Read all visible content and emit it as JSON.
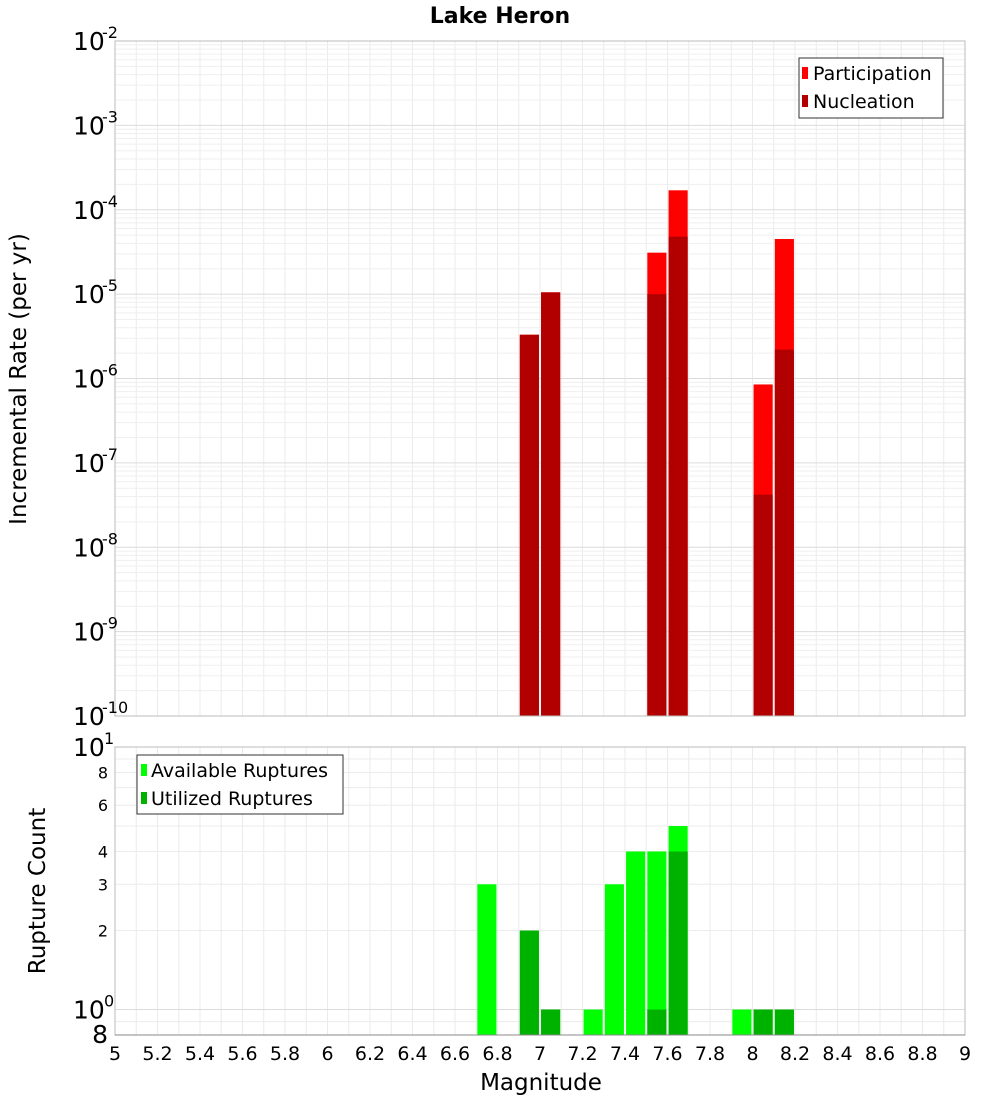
{
  "chart_data": [
    {
      "type": "bar",
      "title": "Lake Heron",
      "xlabel": "",
      "ylabel": "Incremental Rate (per yr)",
      "yscale": "log",
      "xlim": [
        5,
        9
      ],
      "ylim": [
        1e-10,
        0.01
      ],
      "grid": true,
      "legend_position": "top-right",
      "bar_width": 0.09,
      "y_major_ticks": [
        {
          "value": 1e-10,
          "base": "10",
          "exp": "-10"
        },
        {
          "value": 1e-09,
          "base": "10",
          "exp": "-9"
        },
        {
          "value": 1e-08,
          "base": "10",
          "exp": "-8"
        },
        {
          "value": 1e-07,
          "base": "10",
          "exp": "-7"
        },
        {
          "value": 1e-06,
          "base": "10",
          "exp": "-6"
        },
        {
          "value": 1e-05,
          "base": "10",
          "exp": "-5"
        },
        {
          "value": 0.0001,
          "base": "10",
          "exp": "-4"
        },
        {
          "value": 0.001,
          "base": "10",
          "exp": "-3"
        },
        {
          "value": 0.01,
          "base": "10",
          "exp": "-2"
        }
      ],
      "series": [
        {
          "name": "Participation",
          "color": "#ff0000",
          "points": [
            {
              "x": 6.95,
              "y": 3.3e-06
            },
            {
              "x": 7.05,
              "y": 1.05e-05
            },
            {
              "x": 7.55,
              "y": 3.1e-05
            },
            {
              "x": 7.65,
              "y": 0.00017
            },
            {
              "x": 8.05,
              "y": 8.5e-07
            },
            {
              "x": 8.15,
              "y": 4.5e-05
            }
          ]
        },
        {
          "name": "Nucleation",
          "color": "#b20000",
          "points": [
            {
              "x": 6.95,
              "y": 3.3e-06
            },
            {
              "x": 7.05,
              "y": 1.05e-05
            },
            {
              "x": 7.55,
              "y": 1e-05
            },
            {
              "x": 7.65,
              "y": 4.8e-05
            },
            {
              "x": 8.05,
              "y": 4.2e-08
            },
            {
              "x": 8.15,
              "y": 2.2e-06
            }
          ]
        }
      ]
    },
    {
      "type": "bar",
      "title": "",
      "xlabel": "Magnitude",
      "ylabel": "Rupture Count",
      "yscale": "log",
      "xlim": [
        5,
        9
      ],
      "ylim": [
        0.8,
        10
      ],
      "grid": true,
      "legend_position": "top-left",
      "bar_width": 0.09,
      "x_tick_labels": [
        "5",
        "5.2",
        "5.4",
        "5.6",
        "5.8",
        "6",
        "6.2",
        "6.4",
        "6.6",
        "6.8",
        "7",
        "7.2",
        "7.4",
        "7.6",
        "7.8",
        "8",
        "8.2",
        "8.4",
        "8.6",
        "8.8",
        "9"
      ],
      "y_major_ticks": [
        {
          "value": 1,
          "base": "10",
          "exp": "0"
        },
        {
          "value": 10,
          "base": "10",
          "exp": "1"
        }
      ],
      "y_minor_ticks": [
        {
          "value": 0.8,
          "label": "8"
        },
        {
          "value": 2,
          "label": "2"
        },
        {
          "value": 3,
          "label": "3"
        },
        {
          "value": 4,
          "label": "4"
        },
        {
          "value": 6,
          "label": "6"
        },
        {
          "value": 8,
          "label": "8"
        }
      ],
      "series": [
        {
          "name": "Available Ruptures",
          "color": "#00ff00",
          "points": [
            {
              "x": 6.75,
              "y": 3
            },
            {
              "x": 6.95,
              "y": 2
            },
            {
              "x": 7.05,
              "y": 1
            },
            {
              "x": 7.25,
              "y": 1
            },
            {
              "x": 7.35,
              "y": 3
            },
            {
              "x": 7.45,
              "y": 4
            },
            {
              "x": 7.55,
              "y": 4
            },
            {
              "x": 7.65,
              "y": 5
            },
            {
              "x": 7.95,
              "y": 1
            },
            {
              "x": 8.05,
              "y": 1
            },
            {
              "x": 8.15,
              "y": 1
            }
          ]
        },
        {
          "name": "Utilized Ruptures",
          "color": "#00b200",
          "points": [
            {
              "x": 6.95,
              "y": 2
            },
            {
              "x": 7.05,
              "y": 1
            },
            {
              "x": 7.55,
              "y": 1
            },
            {
              "x": 7.65,
              "y": 4
            },
            {
              "x": 8.05,
              "y": 1
            },
            {
              "x": 8.15,
              "y": 1
            }
          ]
        }
      ]
    }
  ]
}
